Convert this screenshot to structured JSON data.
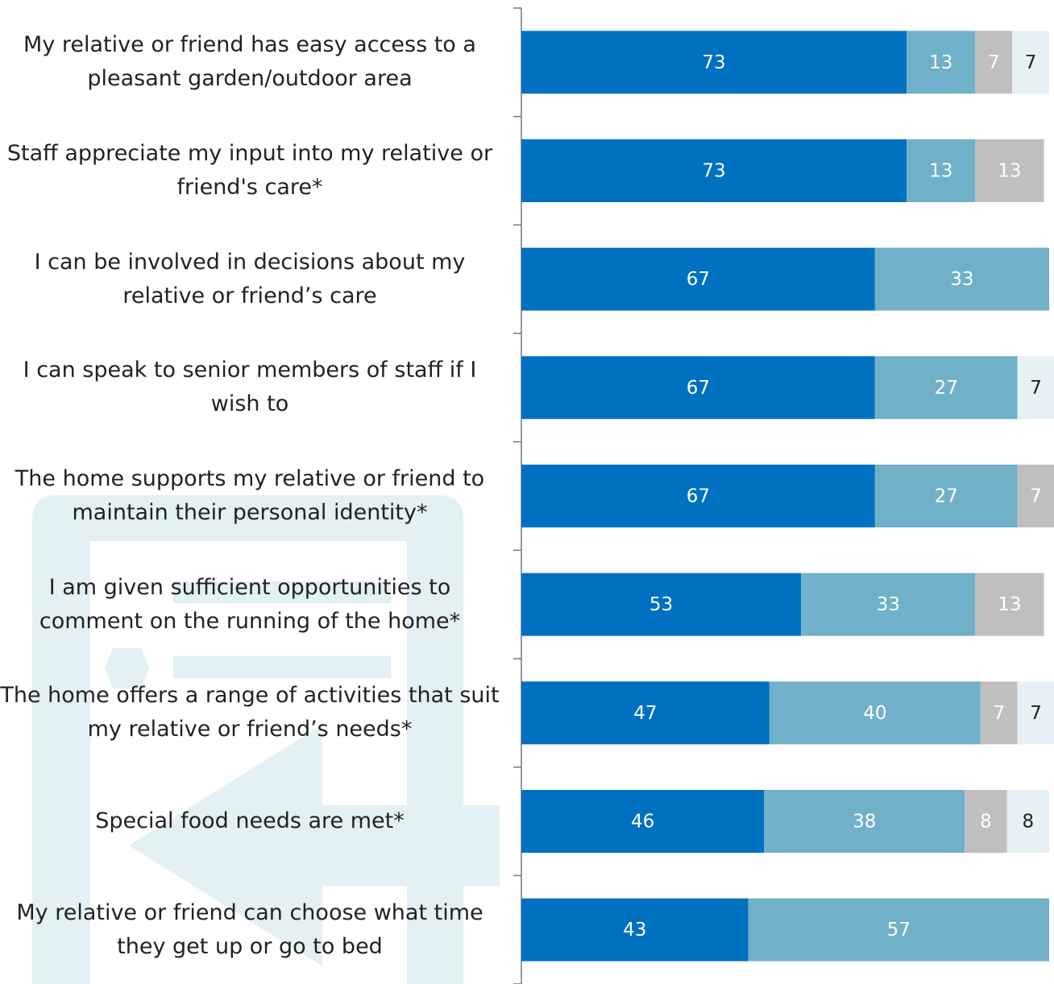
{
  "chart_data": {
    "type": "stacked-bar-horizontal",
    "categories": [
      "My relative or friend has easy access to a pleasant garden/outdoor area",
      "Staff appreciate my input into my relative or friend's care*",
      "I can be involved in decisions about my relative or friend’s care",
      "I can speak to senior members of staff if I wish to",
      "The home supports my relative or friend to maintain their personal identity*",
      "I am given sufficient opportunities to comment on the running of the home*",
      "The home offers a range of activities that suit my relative or friend’s needs*",
      "Special food needs are met*",
      "My relative or friend can choose what time they get up or go to bed"
    ],
    "series": [
      {
        "color": "#0070c0",
        "label_color": "#ffffff",
        "values": [
          73,
          73,
          67,
          67,
          67,
          53,
          47,
          46,
          43
        ]
      },
      {
        "color": "#70b0c9",
        "label_color": "#ffffff",
        "values": [
          13,
          13,
          33,
          27,
          27,
          33,
          40,
          38,
          57
        ]
      },
      {
        "color": "#bfbfbf",
        "label_color": "#ffffff",
        "values": [
          7,
          13,
          null,
          null,
          7,
          13,
          7,
          8,
          null
        ]
      },
      {
        "color": "#e5f1f5",
        "label_color": "#222222",
        "values": [
          7,
          null,
          null,
          7,
          null,
          null,
          7,
          8,
          null
        ]
      }
    ],
    "xlim": [
      0,
      100
    ]
  }
}
